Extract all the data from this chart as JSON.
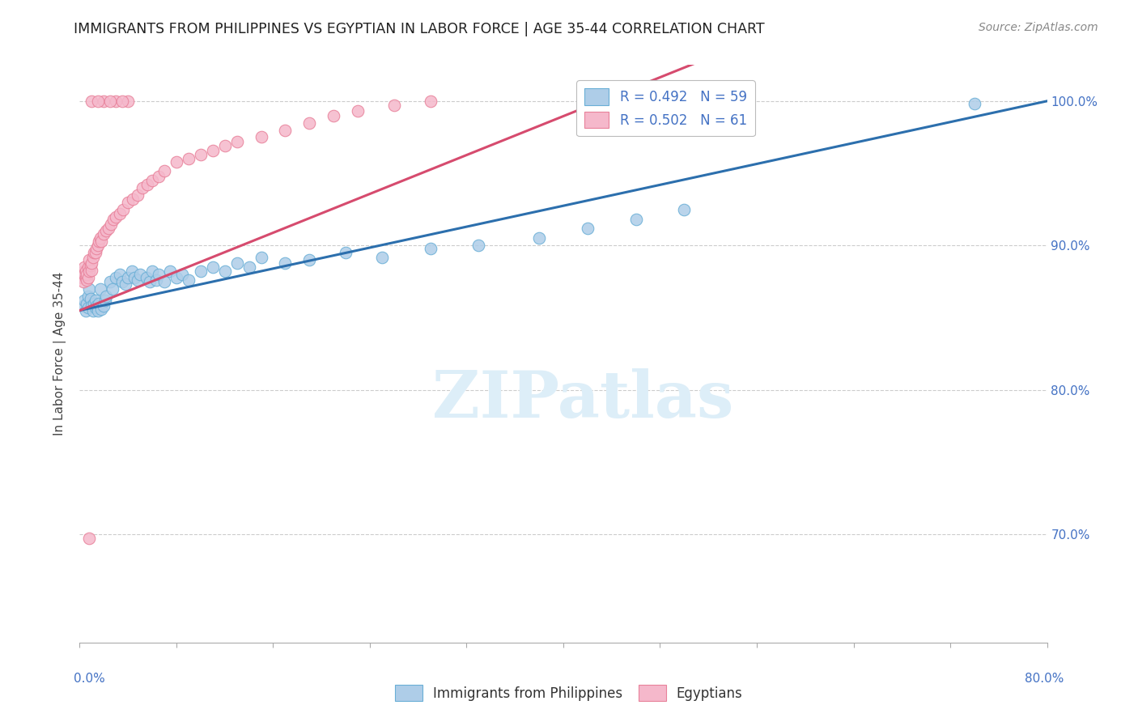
{
  "title": "IMMIGRANTS FROM PHILIPPINES VS EGYPTIAN IN LABOR FORCE | AGE 35-44 CORRELATION CHART",
  "source": "Source: ZipAtlas.com",
  "ylabel": "In Labor Force | Age 35-44",
  "y_ticks": [
    0.7,
    0.8,
    0.9,
    1.0
  ],
  "y_tick_labels": [
    "70.0%",
    "80.0%",
    "90.0%",
    "100.0%"
  ],
  "x_min": 0.0,
  "x_max": 0.8,
  "y_min": 0.625,
  "y_max": 1.025,
  "blue_face": "#aecde8",
  "blue_edge": "#6aafd6",
  "pink_face": "#f5b8cb",
  "pink_edge": "#e8819a",
  "blue_line": "#2c6fad",
  "pink_line": "#d64b6e",
  "tick_color": "#aaaaaa",
  "grid_color": "#cccccc",
  "right_label_color": "#4472c4",
  "watermark_color": "#ddeef8",
  "legend_label_color": "#4472c4",
  "ph_x": [
    0.003,
    0.004,
    0.005,
    0.006,
    0.007,
    0.007,
    0.008,
    0.009,
    0.01,
    0.011,
    0.012,
    0.013,
    0.013,
    0.014,
    0.015,
    0.016,
    0.017,
    0.018,
    0.02,
    0.021,
    0.022,
    0.025,
    0.027,
    0.03,
    0.033,
    0.035,
    0.038,
    0.04,
    0.043,
    0.045,
    0.048,
    0.05,
    0.055,
    0.058,
    0.06,
    0.063,
    0.065,
    0.07,
    0.075,
    0.08,
    0.085,
    0.09,
    0.1,
    0.11,
    0.12,
    0.13,
    0.14,
    0.15,
    0.17,
    0.19,
    0.22,
    0.25,
    0.29,
    0.33,
    0.38,
    0.42,
    0.46,
    0.5,
    0.74
  ],
  "ph_y": [
    0.858,
    0.862,
    0.855,
    0.86,
    0.857,
    0.865,
    0.87,
    0.863,
    0.858,
    0.855,
    0.86,
    0.857,
    0.862,
    0.858,
    0.855,
    0.86,
    0.87,
    0.856,
    0.858,
    0.862,
    0.865,
    0.875,
    0.87,
    0.878,
    0.88,
    0.875,
    0.873,
    0.878,
    0.882,
    0.878,
    0.876,
    0.88,
    0.878,
    0.875,
    0.882,
    0.876,
    0.88,
    0.875,
    0.882,
    0.878,
    0.88,
    0.876,
    0.882,
    0.885,
    0.882,
    0.888,
    0.885,
    0.892,
    0.888,
    0.89,
    0.895,
    0.892,
    0.898,
    0.9,
    0.905,
    0.912,
    0.918,
    0.925,
    0.998
  ],
  "eg_x": [
    0.002,
    0.003,
    0.003,
    0.004,
    0.004,
    0.005,
    0.005,
    0.006,
    0.006,
    0.007,
    0.007,
    0.008,
    0.008,
    0.009,
    0.01,
    0.01,
    0.011,
    0.012,
    0.013,
    0.014,
    0.015,
    0.016,
    0.017,
    0.018,
    0.02,
    0.022,
    0.024,
    0.026,
    0.028,
    0.03,
    0.033,
    0.036,
    0.04,
    0.044,
    0.048,
    0.052,
    0.056,
    0.06,
    0.065,
    0.07,
    0.08,
    0.09,
    0.1,
    0.11,
    0.12,
    0.13,
    0.15,
    0.17,
    0.19,
    0.21,
    0.23,
    0.26,
    0.29,
    0.04,
    0.01,
    0.02,
    0.03,
    0.015,
    0.025,
    0.035,
    0.008
  ],
  "eg_y": [
    0.878,
    0.882,
    0.875,
    0.88,
    0.885,
    0.878,
    0.882,
    0.876,
    0.88,
    0.885,
    0.878,
    0.89,
    0.882,
    0.886,
    0.883,
    0.888,
    0.892,
    0.895,
    0.895,
    0.898,
    0.9,
    0.903,
    0.905,
    0.903,
    0.908,
    0.91,
    0.912,
    0.915,
    0.918,
    0.92,
    0.922,
    0.925,
    0.93,
    0.932,
    0.935,
    0.94,
    0.942,
    0.945,
    0.948,
    0.952,
    0.958,
    0.96,
    0.963,
    0.966,
    0.969,
    0.972,
    0.975,
    0.98,
    0.985,
    0.99,
    0.993,
    0.997,
    1.0,
    1.0,
    1.0,
    1.0,
    1.0,
    1.0,
    1.0,
    1.0,
    0.697
  ],
  "legend_labels": [
    "R = 0.492   N = 59",
    "R = 0.502   N = 61"
  ],
  "bottom_labels": [
    "Immigrants from Philippines",
    "Egyptians"
  ]
}
